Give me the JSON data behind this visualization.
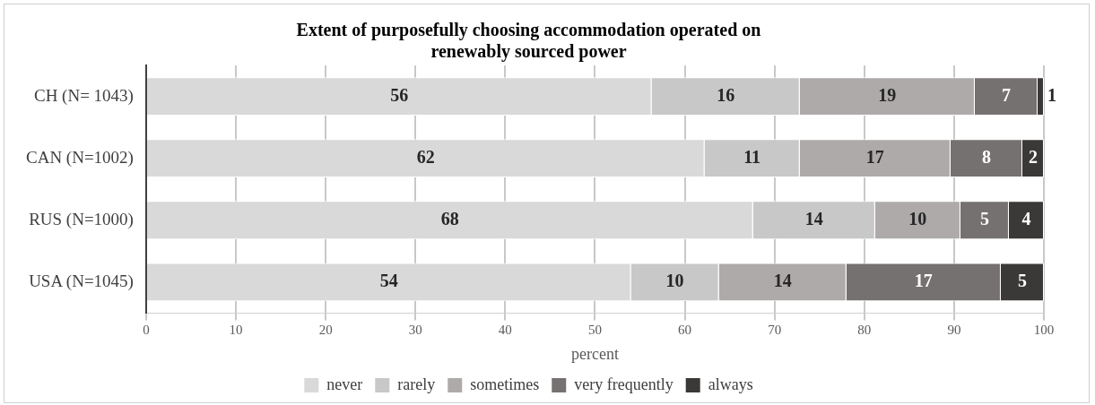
{
  "chart_data": {
    "type": "bar",
    "orientation": "horizontal",
    "stacked": true,
    "title": "Extent of purposefully choosing accommodation operated on renewably sourced power",
    "xlabel": "percent",
    "categories": [
      "CH (N= 1043)",
      "CAN (N=1002)",
      "RUS (N=1000)",
      "USA (N=1045)"
    ],
    "series": [
      {
        "name": "never",
        "color": "#d9d9d9",
        "values": [
          56.3,
          62.2,
          67.6,
          54.0
        ],
        "value_labels": [
          "56",
          "62",
          "68",
          "54"
        ]
      },
      {
        "name": "rarely",
        "color": "#c8c8c8",
        "values": [
          16.5,
          10.6,
          13.6,
          9.8
        ],
        "value_labels": [
          "16",
          "11",
          "14",
          "10"
        ]
      },
      {
        "name": "sometimes",
        "color": "#aeaaaa",
        "values": [
          19.5,
          16.8,
          9.5,
          14.2
        ],
        "value_labels": [
          "19",
          "17",
          "10",
          "14"
        ]
      },
      {
        "name": "very frequently",
        "color": "#767171",
        "values": [
          7.0,
          8.0,
          5.4,
          17.2
        ],
        "value_labels": [
          "7",
          "8",
          "5",
          "17"
        ]
      },
      {
        "name": "always",
        "color": "#3b3838",
        "values": [
          0.7,
          2.4,
          3.9,
          4.8
        ],
        "value_labels": [
          "1",
          "2",
          "4",
          "5"
        ]
      }
    ],
    "xlim": [
      0,
      100
    ],
    "xticks": [
      0,
      10,
      20,
      30,
      40,
      50,
      60,
      70,
      80,
      90,
      100
    ],
    "grid": "x",
    "legend": "bottom"
  }
}
